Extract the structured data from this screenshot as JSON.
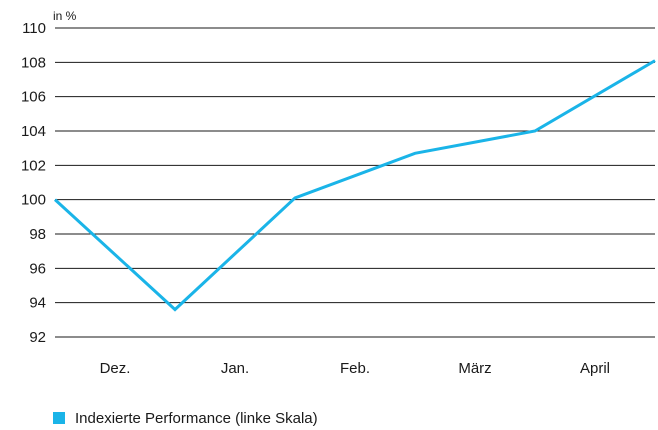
{
  "chart_data": {
    "type": "line",
    "unit_label": "in %",
    "y_ticks": [
      92,
      94,
      96,
      98,
      100,
      102,
      104,
      106,
      108,
      110
    ],
    "ylim": [
      92,
      110
    ],
    "categories": [
      "Dez.",
      "Jan.",
      "Feb.",
      "März",
      "April"
    ],
    "series": [
      {
        "name": "Indexierte Performance (linke Skala)",
        "color": "#1ab4e8",
        "x": [
          0,
          1,
          2,
          3,
          4,
          5
        ],
        "values": [
          100.0,
          93.6,
          100.1,
          102.7,
          104.0,
          108.1
        ]
      }
    ],
    "grid": true,
    "legend_position": "bottom-left"
  }
}
